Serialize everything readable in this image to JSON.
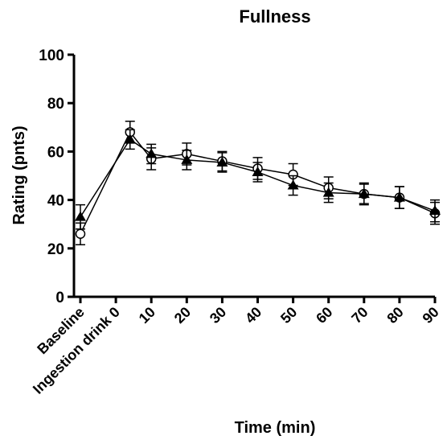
{
  "chart_data": {
    "type": "line",
    "title": "Fullness",
    "xlabel": "Time (min)",
    "ylabel": "Rating (pnts)",
    "xlim": [
      -10,
      90
    ],
    "xticks": [
      {
        "value": -10,
        "label": "Baseline"
      },
      {
        "value": 0,
        "label": "Ingestion drink 0"
      },
      10,
      20,
      30,
      40,
      50,
      60,
      70,
      80,
      90
    ],
    "ylim": [
      0,
      100
    ],
    "yticks": [
      0,
      20,
      40,
      60,
      80,
      100
    ],
    "x": [
      -10,
      4,
      10,
      20,
      30,
      40,
      50,
      60,
      70,
      80,
      90
    ],
    "series": [
      {
        "color": "#000000",
        "marker": "circle-open",
        "values": [
          26,
          68,
          57,
          59,
          56,
          53,
          50.5,
          45,
          42.5,
          41,
          34.5
        ],
        "errors": [
          4.5,
          4.5,
          4.5,
          4.5,
          4,
          4.5,
          4.5,
          4.5,
          4.5,
          4.5,
          4.5
        ]
      },
      {
        "color": "#000000",
        "marker": "triangle",
        "values": [
          33,
          65,
          59,
          56.5,
          55.5,
          51.5,
          46,
          43,
          42.5,
          41,
          35.5
        ],
        "errors": [
          5,
          4,
          4,
          4,
          4,
          4,
          4,
          4,
          4,
          4.5,
          4.5
        ]
      }
    ]
  }
}
